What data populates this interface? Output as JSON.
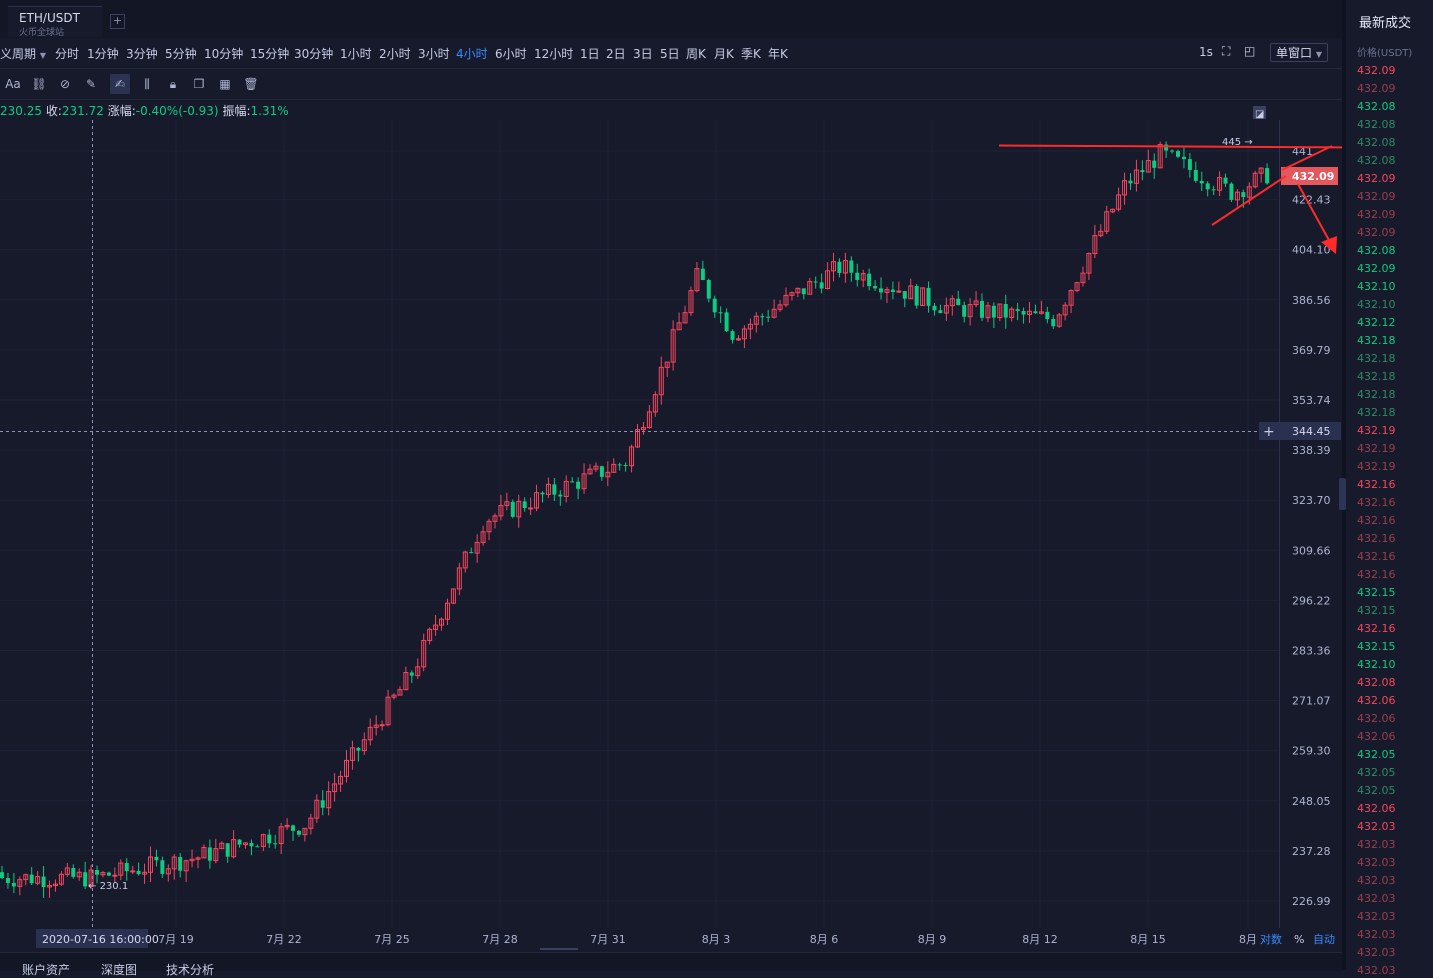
{
  "tab": {
    "symbol": "ETH/USDT",
    "exchange": "火币全球站",
    "add": "+"
  },
  "periods": {
    "custom": "义周期",
    "items": [
      "分时",
      "1分钟",
      "3分钟",
      "5分钟",
      "10分钟",
      "15分钟",
      "30分钟",
      "1小时",
      "2小时",
      "3小时",
      "4小时",
      "6小时",
      "12小时",
      "1日",
      "2日",
      "3日",
      "5日",
      "周K",
      "月K",
      "季K",
      "年K"
    ],
    "active": "4小时"
  },
  "controls": {
    "interval": "1s",
    "window": "单窗口"
  },
  "tools": [
    "Aa"
  ],
  "ohlc": {
    "open_value": "230.25",
    "close_label": "收:",
    "close_value": "231.72",
    "change_label": "涨幅:",
    "change_value": "-0.40%(-0.93)",
    "amp_label": "振幅:",
    "amp_value": "1.31%"
  },
  "axis": {
    "price_ticks": [
      {
        "v": 441.0,
        "t": "441"
      },
      {
        "v": 422.43,
        "t": "422.43"
      },
      {
        "v": 404.1,
        "t": "404.10"
      },
      {
        "v": 386.56,
        "t": "386.56"
      },
      {
        "v": 369.79,
        "t": "369.79"
      },
      {
        "v": 353.74,
        "t": "353.74"
      },
      {
        "v": 338.39,
        "t": "338.39"
      },
      {
        "v": 323.7,
        "t": "323.70"
      },
      {
        "v": 309.66,
        "t": "309.66"
      },
      {
        "v": 296.22,
        "t": "296.22"
      },
      {
        "v": 283.36,
        "t": "283.36"
      },
      {
        "v": 271.07,
        "t": "271.07"
      },
      {
        "v": 259.3,
        "t": "259.30"
      },
      {
        "v": 248.05,
        "t": "248.05"
      },
      {
        "v": 237.28,
        "t": "237.28"
      },
      {
        "v": 226.99,
        "t": "226.99"
      }
    ],
    "date_labels": [
      "7月 19",
      "7月 22",
      "7月 25",
      "7月 28",
      "7月 31",
      "8月 3",
      "8月 6",
      "8月 9",
      "8月 12",
      "8月 15",
      "8月"
    ],
    "crosshair_date": "2020-07-16 16:00:00",
    "crosshair_price": "344.45",
    "last_price": "432.09",
    "high_mark": "445",
    "low_mark": "230.1",
    "scale_options": [
      "对数",
      "%",
      "自动"
    ]
  },
  "chart_data": {
    "type": "candlestick",
    "interval": "4小时",
    "y_scale": "log",
    "ylim": [
      222,
      452
    ],
    "x_range": [
      "2020-07-16",
      "2020-08-18"
    ],
    "anchor_points": [
      {
        "t": "2020-07-16",
        "close": 231.7
      },
      {
        "t": "2020-07-19",
        "close": 236
      },
      {
        "t": "2020-07-22",
        "close": 243
      },
      {
        "t": "2020-07-25",
        "close": 278
      },
      {
        "t": "2020-07-27",
        "close": 318
      },
      {
        "t": "2020-07-31",
        "close": 335
      },
      {
        "t": "2020-08-02",
        "close": 395
      },
      {
        "t": "2020-08-03",
        "close": 375
      },
      {
        "t": "2020-08-06",
        "close": 398
      },
      {
        "t": "2020-08-09",
        "close": 384
      },
      {
        "t": "2020-08-12",
        "close": 380
      },
      {
        "t": "2020-08-14",
        "close": 428
      },
      {
        "t": "2020-08-15",
        "close": 440
      },
      {
        "t": "2020-08-17",
        "close": 425
      },
      {
        "t": "2020-08-18",
        "close": 432.09
      }
    ],
    "annotations": [
      "水平线 ≈441",
      "收敛三角形 + 向下箭头"
    ]
  },
  "trades": {
    "title": "最新成交",
    "header": "价格(USDT)",
    "rows": [
      {
        "p": "432.09",
        "s": "down"
      },
      {
        "p": "432.09",
        "s": "down-dim"
      },
      {
        "p": "432.08",
        "s": "up"
      },
      {
        "p": "432.08",
        "s": "up-dim"
      },
      {
        "p": "432.08",
        "s": "up-dim"
      },
      {
        "p": "432.08",
        "s": "up-dim"
      },
      {
        "p": "432.09",
        "s": "down"
      },
      {
        "p": "432.09",
        "s": "down-dim"
      },
      {
        "p": "432.09",
        "s": "down-dim"
      },
      {
        "p": "432.09",
        "s": "down-dim"
      },
      {
        "p": "432.08",
        "s": "up"
      },
      {
        "p": "432.09",
        "s": "up"
      },
      {
        "p": "432.10",
        "s": "up"
      },
      {
        "p": "432.10",
        "s": "up-dim"
      },
      {
        "p": "432.12",
        "s": "up"
      },
      {
        "p": "432.18",
        "s": "up"
      },
      {
        "p": "432.18",
        "s": "up-dim"
      },
      {
        "p": "432.18",
        "s": "up-dim"
      },
      {
        "p": "432.18",
        "s": "up-dim"
      },
      {
        "p": "432.18",
        "s": "up-dim"
      },
      {
        "p": "432.19",
        "s": "down"
      },
      {
        "p": "432.19",
        "s": "down-dim"
      },
      {
        "p": "432.19",
        "s": "down-dim"
      },
      {
        "p": "432.16",
        "s": "down"
      },
      {
        "p": "432.16",
        "s": "down-dim"
      },
      {
        "p": "432.16",
        "s": "down-dim"
      },
      {
        "p": "432.16",
        "s": "down-dim"
      },
      {
        "p": "432.16",
        "s": "down-dim"
      },
      {
        "p": "432.16",
        "s": "down-dim"
      },
      {
        "p": "432.15",
        "s": "up"
      },
      {
        "p": "432.15",
        "s": "up-dim"
      },
      {
        "p": "432.16",
        "s": "down"
      },
      {
        "p": "432.15",
        "s": "up"
      },
      {
        "p": "432.10",
        "s": "up"
      },
      {
        "p": "432.08",
        "s": "down"
      },
      {
        "p": "432.06",
        "s": "down"
      },
      {
        "p": "432.06",
        "s": "down-dim"
      },
      {
        "p": "432.06",
        "s": "down-dim"
      },
      {
        "p": "432.05",
        "s": "up"
      },
      {
        "p": "432.05",
        "s": "up-dim"
      },
      {
        "p": "432.05",
        "s": "up-dim"
      },
      {
        "p": "432.06",
        "s": "down"
      },
      {
        "p": "432.03",
        "s": "down"
      },
      {
        "p": "432.03",
        "s": "down-dim"
      },
      {
        "p": "432.03",
        "s": "down-dim"
      },
      {
        "p": "432.03",
        "s": "down-dim"
      },
      {
        "p": "432.03",
        "s": "down-dim"
      },
      {
        "p": "432.03",
        "s": "down-dim"
      },
      {
        "p": "432.03",
        "s": "down-dim"
      },
      {
        "p": "432.03",
        "s": "down-dim"
      },
      {
        "p": "432.03",
        "s": "down-dim"
      }
    ]
  },
  "bottom": {
    "tabs": [
      "账户资产",
      "深度图",
      "技术分析"
    ]
  },
  "colors": {
    "up": "#0ecb81",
    "down": "#f6465d",
    "accent": "#3a8bff",
    "bg": "#161a2b",
    "annotation": "#ff2b2b"
  }
}
